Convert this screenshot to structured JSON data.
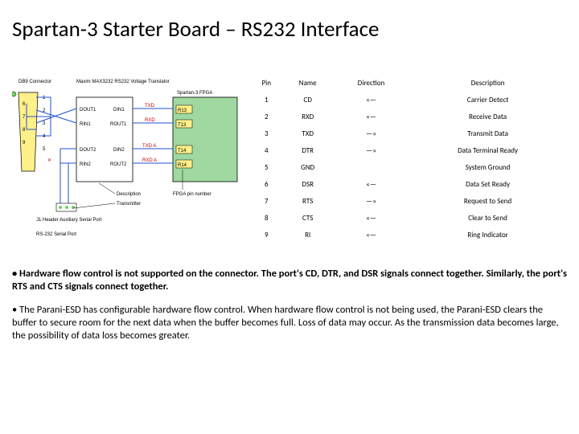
{
  "title": "Spartan-3 Starter Board – RS232 Interface",
  "table": {
    "headers": [
      "Pin",
      "Name",
      "Direction",
      "Description"
    ],
    "rows": [
      [
        "1",
        "CD",
        "«—",
        "Carrier Detect"
      ],
      [
        "2",
        "RXD",
        "«—",
        "Receive Data"
      ],
      [
        "3",
        "TXD",
        "—»",
        "Transmit Data"
      ],
      [
        "4",
        "DTR",
        "—»",
        "Data Terminal Ready"
      ],
      [
        "5",
        "GND",
        "",
        "System Ground"
      ],
      [
        "6",
        "DSR",
        "«—",
        "Data Set Ready"
      ],
      [
        "7",
        "RTS",
        "—»",
        "Request to Send"
      ],
      [
        "8",
        "CTS",
        "«—",
        "Clear to Send"
      ],
      [
        "9",
        "RI",
        "«—",
        "Ring Indicator"
      ]
    ]
  },
  "diagram": {
    "labels": {
      "db9": "DB9 Connector",
      "max232": "Maxim MAX3232 RS232 Voltage Translator",
      "fpga": "Spartan-3 FPGA",
      "txd": "TXD",
      "rxd": "RXD",
      "txda": "TXD A",
      "rxda": "RXD A",
      "dout1": "DOUT1",
      "din1": "DIN1",
      "rin1": "RIN1",
      "rout1": "ROUT1",
      "dout2": "DOUT2",
      "din2": "DIN2",
      "rin2": "RIN2",
      "rout2": "ROUT2",
      "r13": "R13",
      "t13": "T13",
      "t14": "T14",
      "r14": "R14",
      "j1": "J1 Header Auxiliary Serial Port",
      "rs232": "RS-232 Serial Port",
      "desc": "Description",
      "trans": "Transmitter",
      "fpgapin": "FPGA pin number"
    },
    "colors": {
      "db9_fill": "#fff08a",
      "max_fill": "#ffffff",
      "fpga_fill": "#9fd8a0",
      "blue": "#2050d0",
      "red": "#c00000",
      "lime": "#70d060",
      "black": "#000000"
    }
  },
  "notes": {
    "n1a": " • Hardware flow control is not supported on the connector. The port's CD, DTR, and DSR signals connect together. Similarly, the port's RTS and  CTS signals connect together.",
    "n2": " • The Parani-ESD has configurable hardware flow control. When hardware flow control is not being used, the Parani-ESD clears the buffer to secure room for the next data when the buffer becomes full. Loss of data may occur. As the transmission data becomes large, the possibility of data loss becomes greater."
  }
}
